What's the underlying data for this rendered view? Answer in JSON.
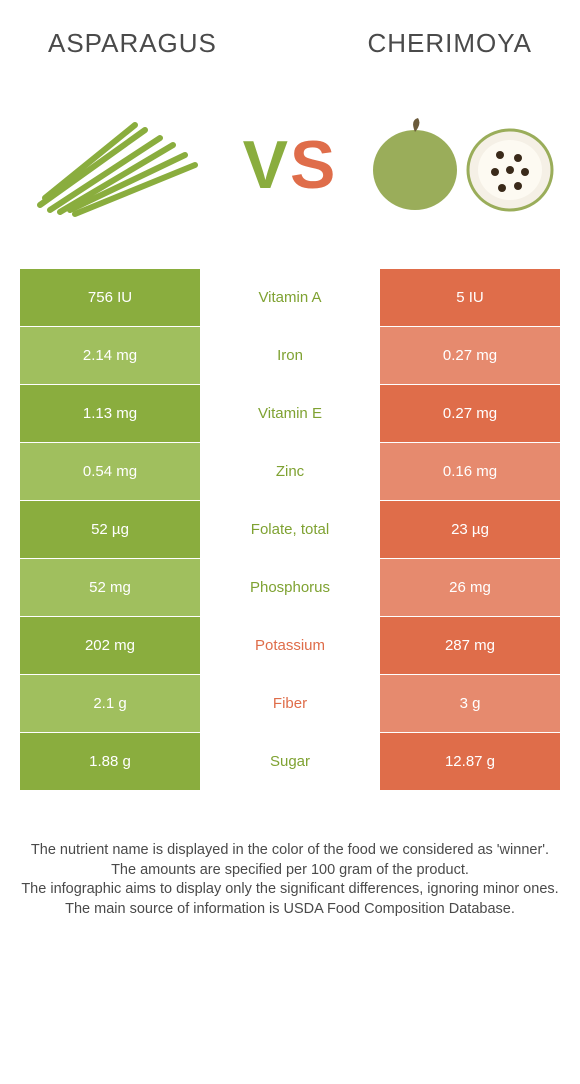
{
  "header": {
    "left_title": "Asparagus",
    "right_title": "Cherimoya"
  },
  "vs": {
    "v": "V",
    "s": "S"
  },
  "colors": {
    "green_dark": "#8aad3e",
    "green_light": "#a0bf5e",
    "orange_dark": "#df6d4a",
    "orange_light": "#e68a6e",
    "mid_text_green": "#7fa232",
    "mid_text_orange": "#df6d4a",
    "body_text": "#4a4a4a",
    "background": "#ffffff"
  },
  "table": {
    "rows": [
      {
        "nutrient": "Vitamin A",
        "left": "756 IU",
        "right": "5 IU",
        "winner": "left"
      },
      {
        "nutrient": "Iron",
        "left": "2.14 mg",
        "right": "0.27 mg",
        "winner": "left"
      },
      {
        "nutrient": "Vitamin E",
        "left": "1.13 mg",
        "right": "0.27 mg",
        "winner": "left"
      },
      {
        "nutrient": "Zinc",
        "left": "0.54 mg",
        "right": "0.16 mg",
        "winner": "left"
      },
      {
        "nutrient": "Folate, total",
        "left": "52 µg",
        "right": "23 µg",
        "winner": "left"
      },
      {
        "nutrient": "Phosphorus",
        "left": "52 mg",
        "right": "26 mg",
        "winner": "left"
      },
      {
        "nutrient": "Potassium",
        "left": "202 mg",
        "right": "287 mg",
        "winner": "right"
      },
      {
        "nutrient": "Fiber",
        "left": "2.1 g",
        "right": "3 g",
        "winner": "right"
      },
      {
        "nutrient": "Sugar",
        "left": "1.88 g",
        "right": "12.87 g",
        "winner": "left"
      }
    ]
  },
  "footer": {
    "line1": "The nutrient name is displayed in the color of the food we considered as 'winner'.",
    "line2": "The amounts are specified per 100 gram of the product.",
    "line3": "The infographic aims to display only the significant differences, ignoring minor ones.",
    "line4": "The main source of information is USDA Food Composition Database."
  },
  "images": {
    "left_icon": "asparagus-icon",
    "right_icon": "cherimoya-icon"
  }
}
